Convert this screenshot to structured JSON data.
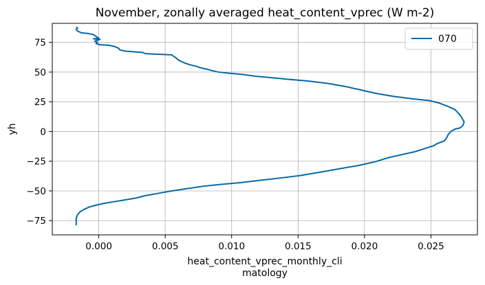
{
  "chart_data": {
    "type": "line",
    "title": "November, zonally averaged heat_content_vprec (W m-2)",
    "xlabel_lines": [
      "heat_content_vprec_monthly_cli",
      "matology"
    ],
    "ylabel": "yh",
    "xlim": [
      -0.0035,
      0.0285
    ],
    "ylim": [
      -87,
      91
    ],
    "xticks": [
      0.0,
      0.005,
      0.01,
      0.015,
      0.02,
      0.025
    ],
    "xtick_labels": [
      "0.000",
      "0.005",
      "0.010",
      "0.015",
      "0.020",
      "0.025"
    ],
    "yticks": [
      -75,
      -50,
      -25,
      0,
      25,
      50,
      75
    ],
    "ytick_labels": [
      "−75",
      "−50",
      "−25",
      "0",
      "25",
      "50",
      "75"
    ],
    "grid": true,
    "legend_position": "top-right",
    "color": "#0468a7",
    "series": [
      {
        "name": "070",
        "points": [
          [
            -0.0017,
            88
          ],
          [
            -0.0016,
            87
          ],
          [
            -0.0017,
            86
          ],
          [
            -0.0016,
            84.5
          ],
          [
            -0.0013,
            83
          ],
          [
            -0.0008,
            82.5
          ],
          [
            -0.0004,
            81.5
          ],
          [
            -0.0002,
            80
          ],
          [
            0.0,
            78.5
          ],
          [
            -0.0004,
            78
          ],
          [
            0.0001,
            77.5
          ],
          [
            -0.0003,
            76
          ],
          [
            -0.0001,
            75
          ],
          [
            -0.0002,
            74
          ],
          [
            0.0001,
            73
          ],
          [
            0.0008,
            72.5
          ],
          [
            0.0012,
            71.5
          ],
          [
            0.0015,
            70
          ],
          [
            0.0016,
            68.5
          ],
          [
            0.0021,
            67.5
          ],
          [
            0.0027,
            67
          ],
          [
            0.0033,
            66.5
          ],
          [
            0.0035,
            65.5
          ],
          [
            0.0045,
            65
          ],
          [
            0.0055,
            64.5
          ],
          [
            0.0056,
            63.5
          ],
          [
            0.0058,
            62
          ],
          [
            0.006,
            60
          ],
          [
            0.0062,
            59
          ],
          [
            0.0065,
            57.5
          ],
          [
            0.0069,
            56
          ],
          [
            0.0073,
            55
          ],
          [
            0.0077,
            53.5
          ],
          [
            0.0081,
            52.5
          ],
          [
            0.0086,
            51
          ],
          [
            0.009,
            50
          ],
          [
            0.0098,
            49
          ],
          [
            0.0108,
            48
          ],
          [
            0.0118,
            46.5
          ],
          [
            0.0128,
            45.5
          ],
          [
            0.0142,
            44
          ],
          [
            0.0157,
            42.5
          ],
          [
            0.0172,
            40.5
          ],
          [
            0.0185,
            38
          ],
          [
            0.0197,
            35
          ],
          [
            0.0209,
            32
          ],
          [
            0.0222,
            29.5
          ],
          [
            0.0236,
            27.5
          ],
          [
            0.0249,
            26
          ],
          [
            0.0256,
            24
          ],
          [
            0.0262,
            21.5
          ],
          [
            0.0268,
            18.5
          ],
          [
            0.0271,
            15
          ],
          [
            0.0273,
            12
          ],
          [
            0.0275,
            8
          ],
          [
            0.0274,
            5
          ],
          [
            0.0272,
            3
          ],
          [
            0.0268,
            2
          ],
          [
            0.0265,
            0
          ],
          [
            0.0263,
            -2.5
          ],
          [
            0.0262,
            -5
          ],
          [
            0.026,
            -8
          ],
          [
            0.0255,
            -10
          ],
          [
            0.0252,
            -12
          ],
          [
            0.0245,
            -14.5
          ],
          [
            0.0238,
            -17
          ],
          [
            0.0228,
            -19.5
          ],
          [
            0.0218,
            -22
          ],
          [
            0.0208,
            -25.5
          ],
          [
            0.0196,
            -28.5
          ],
          [
            0.0183,
            -31
          ],
          [
            0.0168,
            -34
          ],
          [
            0.0152,
            -37
          ],
          [
            0.0138,
            -39
          ],
          [
            0.0122,
            -41
          ],
          [
            0.0107,
            -43
          ],
          [
            0.0092,
            -44.5
          ],
          [
            0.0079,
            -46
          ],
          [
            0.0067,
            -48
          ],
          [
            0.0055,
            -50
          ],
          [
            0.0045,
            -52
          ],
          [
            0.0035,
            -54
          ],
          [
            0.0028,
            -56
          ],
          [
            0.002,
            -57.5
          ],
          [
            0.0012,
            -59
          ],
          [
            0.0004,
            -60.5
          ],
          [
            -0.0002,
            -62
          ],
          [
            -0.0007,
            -63.5
          ],
          [
            -0.0011,
            -65.5
          ],
          [
            -0.0014,
            -67.5
          ],
          [
            -0.0016,
            -70
          ],
          [
            -0.0017,
            -73
          ],
          [
            -0.0017,
            -76
          ],
          [
            -0.0017,
            -79
          ]
        ]
      }
    ]
  }
}
